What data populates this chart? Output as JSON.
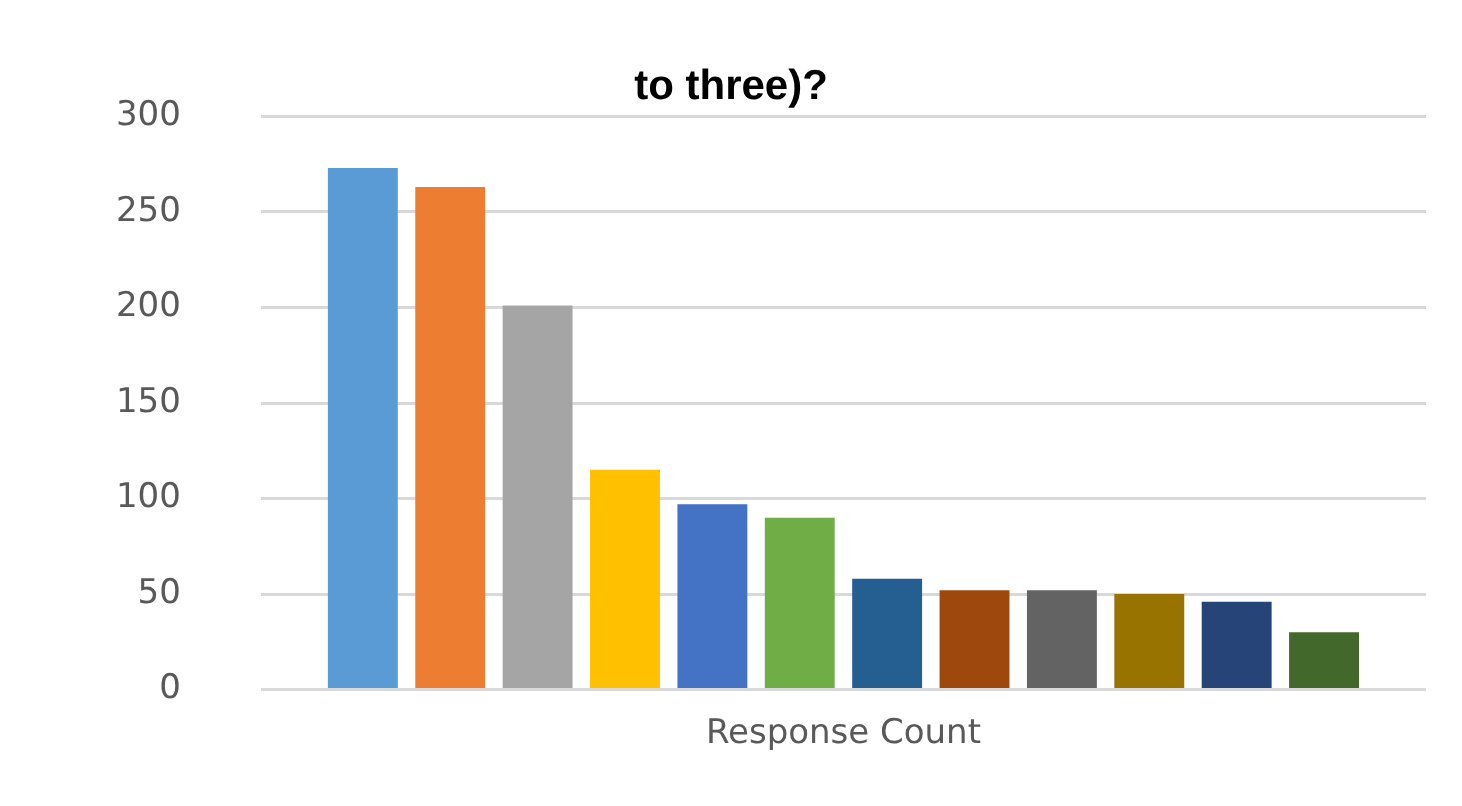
{
  "chart_data": {
    "type": "bar",
    "title": "to three)?",
    "categories": [
      "Response Count"
    ],
    "series": [
      {
        "color": "#5b9bd5",
        "values": [
          273
        ]
      },
      {
        "color": "#ed7d31",
        "values": [
          263
        ]
      },
      {
        "color": "#a5a5a5",
        "values": [
          201
        ]
      },
      {
        "color": "#ffc000",
        "values": [
          115
        ]
      },
      {
        "color": "#4472c4",
        "values": [
          97
        ]
      },
      {
        "color": "#70ad47",
        "values": [
          90
        ]
      },
      {
        "color": "#255e91",
        "values": [
          58
        ]
      },
      {
        "color": "#9e480e",
        "values": [
          52
        ]
      },
      {
        "color": "#636363",
        "values": [
          52
        ]
      },
      {
        "color": "#997300",
        "values": [
          50
        ]
      },
      {
        "color": "#264478",
        "values": [
          46
        ]
      },
      {
        "color": "#43682b",
        "values": [
          30
        ]
      }
    ],
    "ylim": [
      0,
      300
    ],
    "yticks": [
      0,
      50,
      100,
      150,
      200,
      250,
      300
    ],
    "grid": "y",
    "legend": false
  }
}
